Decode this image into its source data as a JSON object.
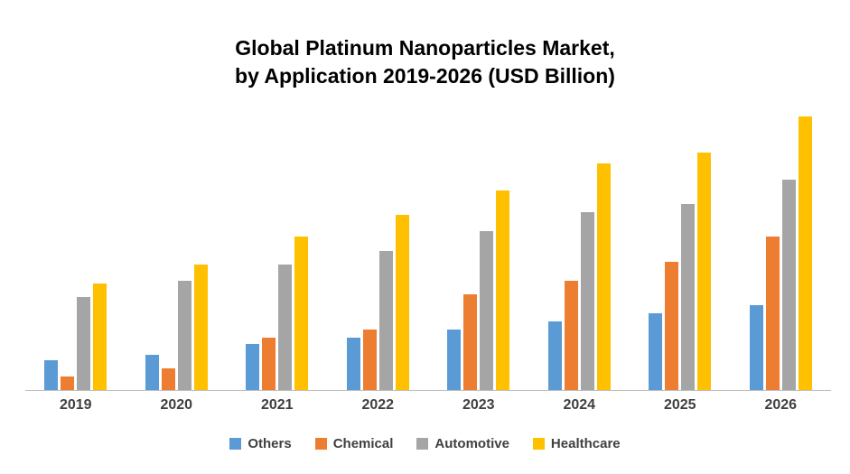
{
  "title": {
    "line1": "Global Platinum Nanoparticles Market,",
    "line2": "by Application 2019-2026 (USD Billion)"
  },
  "chart_data": {
    "type": "bar",
    "title": "Global Platinum Nanoparticles Market, by Application 2019-2026 (USD Billion)",
    "categories": [
      "2019",
      "2020",
      "2021",
      "2022",
      "2023",
      "2024",
      "2025",
      "2026"
    ],
    "series": [
      {
        "name": "Others",
        "color": "#5B9BD5",
        "values": [
          1.1,
          1.3,
          1.7,
          1.9,
          2.2,
          2.5,
          2.8,
          3.1
        ]
      },
      {
        "name": "Chemical",
        "color": "#ED7D31",
        "values": [
          0.5,
          0.8,
          1.9,
          2.2,
          3.5,
          4.0,
          4.7,
          5.6
        ]
      },
      {
        "name": "Automotive",
        "color": "#A5A5A5",
        "values": [
          3.4,
          4.0,
          4.6,
          5.1,
          5.8,
          6.5,
          6.8,
          7.7
        ]
      },
      {
        "name": "Healthcare",
        "color": "#FFC000",
        "values": [
          3.9,
          4.6,
          5.6,
          6.4,
          7.3,
          8.3,
          8.7,
          10.0
        ]
      }
    ],
    "xlabel": "",
    "ylabel": "",
    "ylim": [
      0,
      10.5
    ],
    "grid": false,
    "legend_position": "bottom",
    "y_axis_labels_visible": false
  }
}
